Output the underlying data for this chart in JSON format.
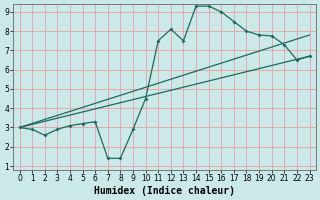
{
  "xlabel": "Humidex (Indice chaleur)",
  "xlim": [
    -0.5,
    23.5
  ],
  "ylim": [
    0.8,
    9.4
  ],
  "bg_color": "#cce9e9",
  "grid_color": "#e8a0a0",
  "line_color": "#1a6b60",
  "line1_x": [
    0,
    1,
    2,
    3,
    4,
    5,
    6,
    7,
    8,
    9,
    10,
    11,
    12,
    13,
    14,
    15,
    16,
    17,
    18,
    19,
    20,
    21,
    22,
    23
  ],
  "line1_y": [
    3.0,
    2.9,
    2.6,
    2.9,
    3.1,
    3.2,
    3.3,
    1.4,
    1.4,
    2.9,
    4.5,
    7.5,
    8.1,
    7.5,
    9.3,
    9.3,
    9.0,
    8.5,
    8.0,
    7.8,
    7.75,
    7.3,
    6.5,
    6.7
  ],
  "line2_x": [
    0,
    23
  ],
  "line2_y": [
    3.0,
    6.7
  ],
  "line3_x": [
    0,
    23
  ],
  "line3_y": [
    3.0,
    7.8
  ],
  "xticks": [
    0,
    1,
    2,
    3,
    4,
    5,
    6,
    7,
    8,
    9,
    10,
    11,
    12,
    13,
    14,
    15,
    16,
    17,
    18,
    19,
    20,
    21,
    22,
    23
  ],
  "yticks": [
    1,
    2,
    3,
    4,
    5,
    6,
    7,
    8,
    9
  ],
  "xlabel_fontsize": 7,
  "tick_fontsize": 5.5
}
